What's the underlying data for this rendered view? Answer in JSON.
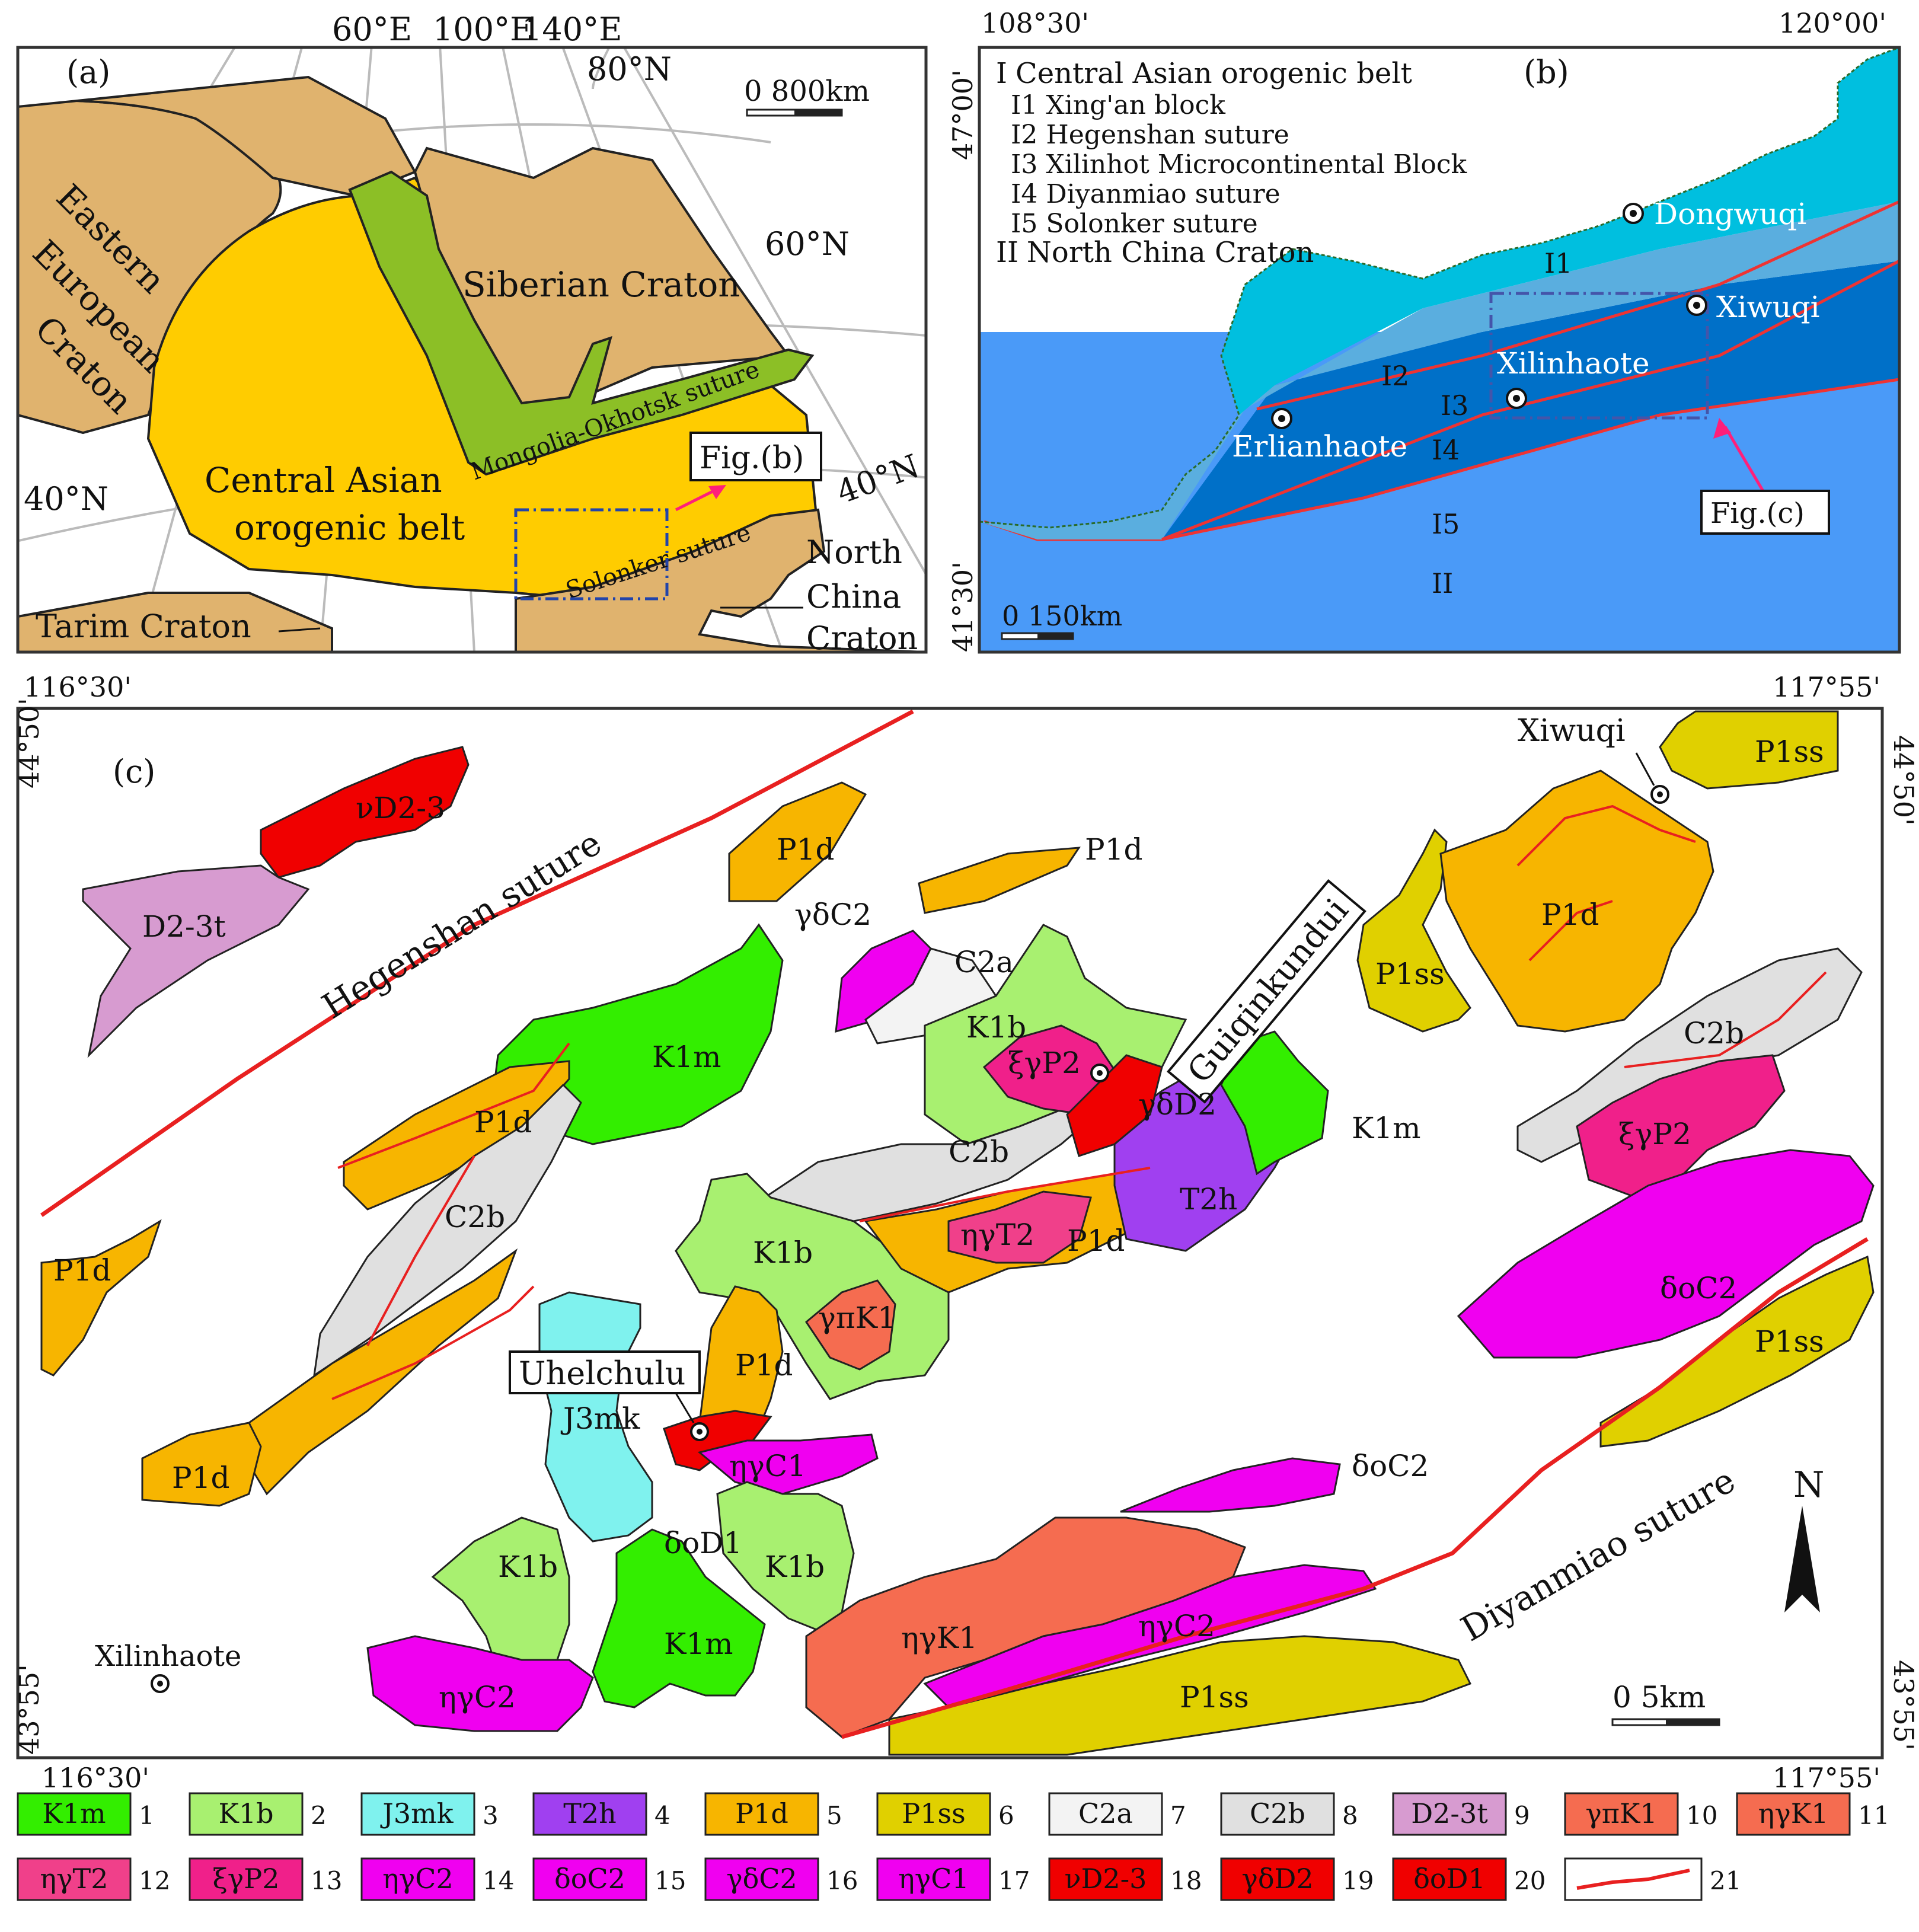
{
  "panel_a": {
    "label": "(a)",
    "lon_labels": [
      "60°E",
      "100°E",
      "140°E"
    ],
    "lat_labels": [
      "80°N",
      "60°N",
      "40°N",
      "40°N"
    ],
    "scale": "0    800km",
    "regions": {
      "eastern_european": [
        "Eastern",
        "European",
        "Craton"
      ],
      "siberian": "Siberian Craton",
      "mongol_okhotsk": "Mongolia-Okhotsk suture",
      "central_asian": [
        "Central Asian",
        "orogenic belt"
      ],
      "solonker": "Solonker suture",
      "tarim": "Tarim Craton",
      "north_china": [
        "North",
        "China",
        "Craton"
      ]
    },
    "figref": "Fig.(b)",
    "colors": {
      "craton": "#E0B36E",
      "caob": "#FFCC00",
      "suture": "#8CBF26"
    }
  },
  "panel_b": {
    "label": "(b)",
    "coords": {
      "top_left": "108°30'",
      "top_right": "120°00'",
      "left_top": "47°00'",
      "left_bottom": "41°30'"
    },
    "legend": [
      {
        "num": "I",
        "text": "Central Asian orogenic belt"
      },
      {
        "num": "I1",
        "text": "Xing'an block"
      },
      {
        "num": "I2",
        "text": "Hegenshan suture"
      },
      {
        "num": "I3",
        "text": "Xilinhot Microcontinental Block"
      },
      {
        "num": "I4",
        "text": "Diyanmiao suture"
      },
      {
        "num": "I5",
        "text": "Solonker suture"
      },
      {
        "num": "II",
        "text": "North China Craton"
      }
    ],
    "zone_labels": [
      "I1",
      "I2",
      "I3",
      "I4",
      "I5",
      "II"
    ],
    "cities": [
      "Dongwuqi",
      "Xiwuqi",
      "Xilinhaote",
      "Erlianhaote"
    ],
    "figref": "Fig.(c)",
    "scale": "0    150km",
    "colors": {
      "i1": "#00BFDF",
      "i2": "#5AAEDF",
      "i4": "#0070C8",
      "ii": "#4A9AF8"
    }
  },
  "panel_c": {
    "label": "(c)",
    "coords": {
      "top_left": "116°30'",
      "top_right": "117°55'",
      "left_top": "44°50'",
      "left_bottom": "43°55'",
      "bottom_left": "116°30'",
      "bottom_right": "117°55'",
      "right_top": "44°50'",
      "right_bottom": "43°55'"
    },
    "sutures": [
      "Hegenshan suture",
      "Diyanmiao suture"
    ],
    "places": [
      "Xiwuqi",
      "Guiqinkundui",
      "Uhelchulu",
      "Xilinhaote"
    ],
    "north": "N",
    "scale": "0    5km",
    "unit_labels": [
      "νD2-3",
      "D2-3t",
      "P1d",
      "P1d",
      "γδC2",
      "C2a",
      "K1b",
      "ξγP2",
      "γδD2",
      "K1m",
      "T2h",
      "ηγT2",
      "P1d",
      "C2b",
      "K1m",
      "P1d",
      "C2b",
      "P1d",
      "K1b",
      "γπK1",
      "P1d",
      "J3mk",
      "ηγC1",
      "δoD1",
      "K1b",
      "K1b",
      "K1m",
      "ηγC2",
      "ηγK1",
      "ηγC2",
      "P1ss",
      "δoC2",
      "P1ss",
      "P1d",
      "C2b",
      "ξγP2",
      "δoC2",
      "P1ss",
      "P1ss",
      "P1d"
    ]
  },
  "legend": [
    {
      "num": "1",
      "label": "K1m",
      "color": "#33EE00"
    },
    {
      "num": "2",
      "label": "K1b",
      "color": "#A8F070"
    },
    {
      "num": "3",
      "label": "J3mk",
      "color": "#7FF2EE"
    },
    {
      "num": "4",
      "label": "T2h",
      "color": "#A040F0"
    },
    {
      "num": "5",
      "label": "P1d",
      "color": "#F7B500"
    },
    {
      "num": "6",
      "label": "P1ss",
      "color": "#E0D000"
    },
    {
      "num": "7",
      "label": "C2a",
      "color": "#F3F3F3"
    },
    {
      "num": "8",
      "label": "C2b",
      "color": "#E0E0E0"
    },
    {
      "num": "9",
      "label": "D2-3t",
      "color": "#D79BD0"
    },
    {
      "num": "10",
      "label": "γπK1",
      "color": "#F56C50"
    },
    {
      "num": "11",
      "label": "ηγK1",
      "color": "#F56C50"
    },
    {
      "num": "12",
      "label": "ηγT2",
      "color": "#F0408A"
    },
    {
      "num": "13",
      "label": "ξγP2",
      "color": "#F0208A"
    },
    {
      "num": "14",
      "label": "ηγC2",
      "color": "#F000F0"
    },
    {
      "num": "15",
      "label": "δoC2",
      "color": "#F000F0"
    },
    {
      "num": "16",
      "label": "γδC2",
      "color": "#F000F0"
    },
    {
      "num": "17",
      "label": "ηγC1",
      "color": "#F000F0"
    },
    {
      "num": "18",
      "label": "νD2-3",
      "color": "#F00000"
    },
    {
      "num": "19",
      "label": "γδD2",
      "color": "#F00000"
    },
    {
      "num": "20",
      "label": "δoD1",
      "color": "#F00000"
    },
    {
      "num": "21",
      "label": "",
      "color": "#FFFFFF"
    }
  ]
}
